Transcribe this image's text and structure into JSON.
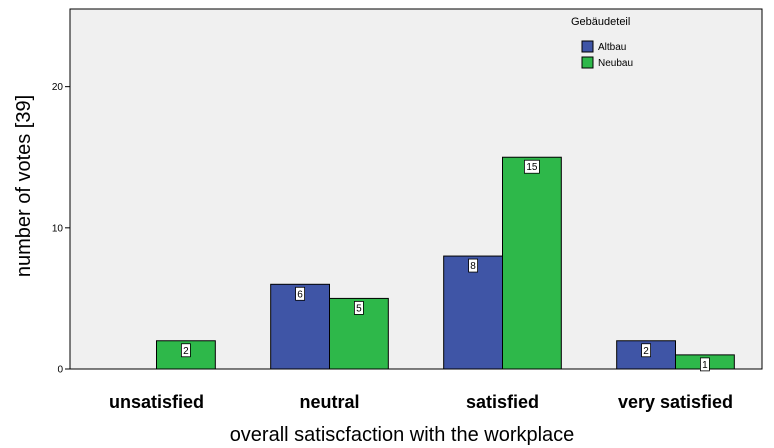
{
  "chart_data": {
    "type": "bar",
    "categories": [
      "unsatisfied",
      "neutral",
      "satisfied",
      "very satisfied"
    ],
    "series": [
      {
        "name": "Altbau",
        "values": [
          0,
          6,
          8,
          2
        ],
        "color": "#3f55a6"
      },
      {
        "name": "Neubau",
        "values": [
          2,
          5,
          15,
          1
        ],
        "color": "#2eb84a"
      }
    ],
    "xlabel": "overall satiscfaction with the workplace",
    "ylabel": "number of votes [39]",
    "ylim": [
      0,
      25.5
    ],
    "yticks": [
      0,
      10,
      20
    ],
    "legend_title": "Gebäudeteil",
    "legend_position": "top-right",
    "grid": false,
    "plot_background": "#f0f0f0",
    "data_labels": true
  }
}
